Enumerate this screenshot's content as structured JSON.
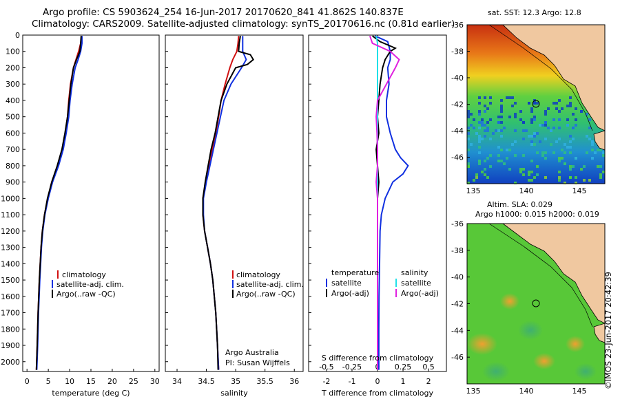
{
  "header": {
    "line1": "Argo profile: CS 5903624_254 16-Jun-2017 20170620_841 41.862S 140.837E",
    "line2": "Climatology: CARS2009. Satellite-adjusted climatology: synTS_20170616.nc (0.81d earlier)"
  },
  "side_label": "©IMOS 23-Jun-2017 20:42:39",
  "colors": {
    "climatology": "#d01010",
    "satellite": "#1030e0",
    "argo": "#000000",
    "cyan": "#20e0e8",
    "magenta": "#e020e0"
  },
  "chart_data": [
    {
      "type": "line",
      "panel": "temperature",
      "xlabel": "temperature (deg C)",
      "xlim": [
        -1,
        31
      ],
      "ylim": [
        2060,
        0
      ],
      "xticks": [
        0,
        5,
        10,
        15,
        20,
        25,
        30
      ],
      "yticks": [
        0,
        100,
        200,
        300,
        400,
        500,
        600,
        700,
        800,
        900,
        1000,
        1100,
        1200,
        1300,
        1400,
        1500,
        1600,
        1700,
        1800,
        1900,
        2000
      ],
      "legend": [
        "climatology",
        "satellite-adj. clim.",
        "Argo(..raw -QC)"
      ],
      "series": [
        {
          "name": "climatology",
          "color": "climatology",
          "depth": [
            5,
            50,
            100,
            150,
            200,
            300,
            400,
            500,
            600,
            700,
            800,
            900,
            1000,
            1100,
            1200,
            1300,
            1500,
            1700,
            1900,
            2050
          ],
          "values": [
            12.8,
            12.6,
            12.1,
            11.5,
            10.9,
            10.2,
            9.8,
            9.5,
            9.0,
            8.3,
            7.2,
            5.8,
            4.9,
            4.1,
            3.6,
            3.3,
            2.9,
            2.6,
            2.4,
            2.2
          ]
        },
        {
          "name": "satellite-adj. clim.",
          "color": "satellite",
          "depth": [
            5,
            50,
            100,
            150,
            200,
            300,
            400,
            500,
            600,
            700,
            800,
            900,
            1000,
            1100,
            1200,
            1300,
            1500,
            1700,
            1900,
            2050
          ],
          "values": [
            12.9,
            12.9,
            12.6,
            12.0,
            11.3,
            10.6,
            10.1,
            9.8,
            9.2,
            8.5,
            7.4,
            6.0,
            5.0,
            4.2,
            3.7,
            3.4,
            3.0,
            2.7,
            2.5,
            2.3
          ]
        },
        {
          "name": "Argo(..raw -QC)",
          "color": "argo",
          "depth": [
            5,
            50,
            100,
            150,
            200,
            300,
            400,
            500,
            600,
            700,
            800,
            900,
            1000,
            1100,
            1200,
            1300,
            1500,
            1700,
            1900,
            2050
          ],
          "values": [
            12.7,
            12.6,
            12.4,
            11.6,
            10.9,
            10.3,
            9.9,
            9.5,
            8.9,
            8.2,
            7.1,
            5.8,
            4.8,
            4.1,
            3.6,
            3.3,
            2.9,
            2.6,
            2.4,
            2.2
          ]
        }
      ]
    },
    {
      "type": "line",
      "panel": "salinity",
      "xlabel": "salinity",
      "xlim": [
        33.8,
        36.15
      ],
      "ylim": [
        2060,
        0
      ],
      "xticks": [
        34,
        34.5,
        35,
        35.5,
        36
      ],
      "xtick_labels": [
        "34",
        "34.5",
        "35",
        "35.5",
        "36"
      ],
      "legend": [
        "climatology",
        "satellite-adj. clim.",
        "Argo(..raw -QC)"
      ],
      "annotations": [
        "Argo Australia",
        "PI: Susan Wijffels"
      ],
      "series": [
        {
          "name": "climatology",
          "color": "climatology",
          "depth": [
            5,
            50,
            100,
            150,
            200,
            300,
            400,
            500,
            600,
            700,
            800,
            900,
            1000,
            1100,
            1200,
            1300,
            1400,
            1500,
            1700,
            1900,
            2050
          ],
          "values": [
            35.05,
            35.04,
            35.02,
            34.95,
            34.9,
            34.82,
            34.75,
            34.71,
            34.66,
            34.6,
            34.55,
            34.49,
            34.44,
            34.44,
            34.47,
            34.52,
            34.57,
            34.61,
            34.66,
            34.69,
            34.71
          ]
        },
        {
          "name": "satellite-adj. clim.",
          "color": "satellite",
          "depth": [
            5,
            50,
            100,
            150,
            200,
            300,
            400,
            500,
            600,
            700,
            800,
            900,
            1000,
            1100,
            1200,
            1300,
            1400,
            1500,
            1700,
            1900,
            2050
          ],
          "values": [
            35.12,
            35.12,
            35.12,
            35.18,
            35.1,
            34.92,
            34.8,
            34.74,
            34.68,
            34.62,
            34.56,
            34.5,
            34.45,
            34.45,
            34.47,
            34.52,
            34.57,
            34.61,
            34.66,
            34.69,
            34.71
          ]
        },
        {
          "name": "Argo(..raw -QC)",
          "color": "argo",
          "depth": [
            5,
            50,
            100,
            120,
            150,
            180,
            200,
            300,
            400,
            500,
            600,
            700,
            800,
            900,
            1000,
            1100,
            1200,
            1300,
            1400,
            1500,
            1700,
            1900,
            2050
          ],
          "values": [
            35.08,
            35.06,
            35.05,
            35.25,
            35.3,
            35.2,
            35.0,
            34.85,
            34.75,
            34.7,
            34.65,
            34.58,
            34.53,
            34.48,
            34.44,
            34.44,
            34.47,
            34.52,
            34.57,
            34.61,
            34.66,
            34.69,
            34.7
          ]
        }
      ]
    },
    {
      "type": "line",
      "panel": "differences",
      "xlabel": "T difference from climatology",
      "xlabel_top": "S difference from climatology",
      "xlim": [
        -2.7,
        2.7
      ],
      "ylim": [
        2060,
        0
      ],
      "xticks": [
        -2,
        -1,
        0,
        1,
        2
      ],
      "s_xticks": [
        "-0.5",
        "-0.25",
        "0",
        "0.25",
        "0.5"
      ],
      "legend_temperature": {
        "title": "temperature",
        "items": [
          "satellite",
          "Argo(-adj)"
        ]
      },
      "legend_salinity": {
        "title": "salinity",
        "items": [
          "satellite",
          "Argo(-adj)"
        ]
      },
      "series": [
        {
          "name": "satellite",
          "group": "temperature",
          "color": "satellite",
          "depth": [
            5,
            40,
            100,
            150,
            200,
            300,
            400,
            500,
            600,
            700,
            750,
            800,
            850,
            900,
            1000,
            1100,
            1200,
            1400,
            1600,
            1800,
            2050
          ],
          "values": [
            -0.1,
            0.4,
            0.5,
            0.5,
            0.4,
            0.45,
            0.35,
            0.35,
            0.5,
            0.7,
            0.9,
            1.2,
            1.0,
            0.6,
            0.3,
            0.15,
            0.1,
            0.08,
            0.06,
            0.05,
            0.05
          ]
        },
        {
          "name": "Argo(-adj)",
          "group": "temperature",
          "color": "argo",
          "depth": [
            5,
            40,
            80,
            100,
            150,
            200,
            300,
            400,
            500,
            600,
            700,
            800,
            900,
            1000,
            1200,
            1400,
            1600,
            1800,
            2050
          ],
          "values": [
            -0.2,
            0.1,
            0.7,
            0.5,
            0.3,
            0.2,
            0.1,
            0.05,
            0.0,
            0.05,
            -0.05,
            0.0,
            0.05,
            0.0,
            0.0,
            0.0,
            0.0,
            0.0,
            0.0
          ]
        },
        {
          "name": "satellite",
          "group": "salinity",
          "color": "cyan",
          "depth": [
            5,
            50,
            100,
            200,
            300,
            400,
            600,
            800,
            1000,
            1200,
            1400,
            1600,
            1800,
            2050
          ],
          "values": [
            -0.05,
            0.0,
            0.0,
            0.0,
            0.0,
            0.0,
            0.0,
            0.0,
            0.0,
            0.0,
            0.0,
            0.0,
            0.0,
            0.0
          ]
        },
        {
          "name": "Argo(-adj)",
          "group": "salinity",
          "color": "magenta",
          "depth": [
            5,
            50,
            100,
            150,
            200,
            300,
            400,
            500,
            600,
            700,
            800,
            900,
            1000,
            1200,
            1400,
            1600,
            1800,
            2050
          ],
          "values": [
            -0.3,
            -0.2,
            0.5,
            0.85,
            0.7,
            0.35,
            0.0,
            -0.05,
            -0.02,
            0.0,
            0.0,
            -0.05,
            0.0,
            0.0,
            0.0,
            0.0,
            0.0,
            0.0
          ]
        }
      ]
    }
  ],
  "maps": [
    {
      "title": "sat. SST: 12.3 Argo: 12.8",
      "subtitle": "",
      "xticks": [
        "135",
        "140",
        "145"
      ],
      "yticks": [
        "-36",
        "-38",
        "-40",
        "-42",
        "-44",
        "-46"
      ]
    },
    {
      "title": "Altim. SLA: 0.029",
      "subtitle": "Argo h1000: 0.015 h2000: 0.019",
      "xticks": [
        "135",
        "140",
        "145"
      ],
      "yticks": [
        "-36",
        "-38",
        "-40",
        "-42",
        "-44",
        "-46"
      ]
    }
  ]
}
